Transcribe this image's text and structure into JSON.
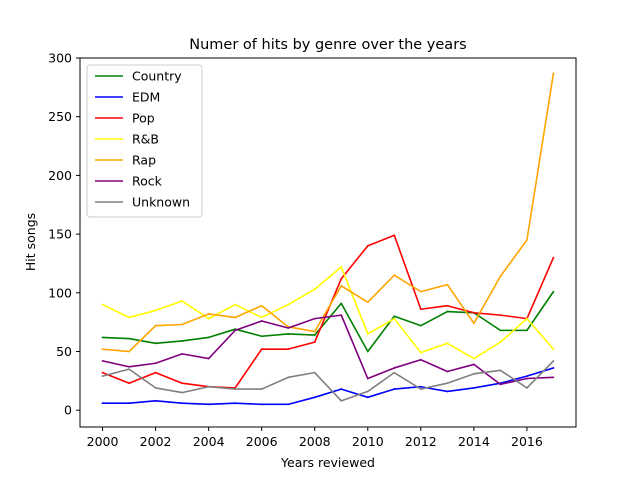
{
  "chart_data": {
    "type": "line",
    "title": "Numer of hits by genre over the years",
    "xlabel": "Years reviewed",
    "ylabel": "Hit songs",
    "xlim": [
      1999.15,
      2017.85
    ],
    "ylim": [
      -14.3,
      300
    ],
    "x_ticks": [
      2000,
      2002,
      2004,
      2006,
      2008,
      2010,
      2012,
      2014,
      2016
    ],
    "y_ticks": [
      0,
      50,
      100,
      150,
      200,
      250,
      300
    ],
    "legend_position": "top-left",
    "grid": false,
    "x": [
      2000,
      2001,
      2002,
      2003,
      2004,
      2005,
      2006,
      2007,
      2008,
      2009,
      2010,
      2011,
      2012,
      2013,
      2014,
      2015,
      2016,
      2017
    ],
    "series": [
      {
        "name": "Country",
        "color": "#008000",
        "values": [
          62,
          61,
          57,
          59,
          62,
          69,
          63,
          65,
          64,
          91,
          50,
          80,
          72,
          84,
          83,
          68,
          68,
          101
        ]
      },
      {
        "name": "EDM",
        "color": "#0000ff",
        "values": [
          6,
          6,
          8,
          6,
          5,
          6,
          5,
          5,
          11,
          18,
          11,
          18,
          20,
          16,
          19,
          23,
          29,
          36
        ]
      },
      {
        "name": "Pop",
        "color": "#ff0000",
        "values": [
          32,
          23,
          32,
          23,
          20,
          19,
          52,
          52,
          58,
          112,
          140,
          149,
          86,
          89,
          83,
          81,
          78,
          130
        ]
      },
      {
        "name": "R&B",
        "color": "#ffff00",
        "values": [
          90,
          79,
          85,
          93,
          78,
          90,
          79,
          90,
          103,
          122,
          65,
          78,
          49,
          57,
          44,
          58,
          78,
          52
        ]
      },
      {
        "name": "Rap",
        "color": "#ffa500",
        "values": [
          52,
          50,
          72,
          73,
          82,
          79,
          89,
          71,
          67,
          106,
          92,
          115,
          101,
          107,
          74,
          114,
          145,
          287
        ]
      },
      {
        "name": "Rock",
        "color": "#800080",
        "values": [
          42,
          37,
          40,
          48,
          44,
          68,
          76,
          70,
          78,
          81,
          27,
          36,
          43,
          33,
          39,
          22,
          27,
          28
        ]
      },
      {
        "name": "Unknown",
        "color": "#808080",
        "values": [
          29,
          35,
          19,
          15,
          20,
          18,
          18,
          28,
          32,
          8,
          16,
          32,
          18,
          23,
          31,
          34,
          19,
          42
        ]
      }
    ]
  }
}
